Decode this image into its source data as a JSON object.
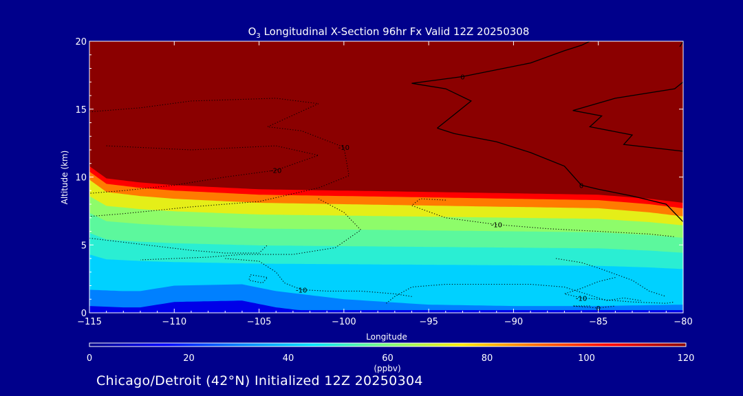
{
  "chart_data": {
    "type": "heatmap",
    "title_prefix": "O",
    "title_subscript": "3",
    "title_rest": " Longitudinal X-Section 96hr  Fx Valid 12Z 20250308",
    "xlabel": "Longitude",
    "ylabel": "Altitude (km)",
    "xlim": [
      -115,
      -80
    ],
    "ylim": [
      0,
      20
    ],
    "x_ticks": [
      -115,
      -110,
      -105,
      -100,
      -95,
      -90,
      -85,
      -80
    ],
    "x_tick_labels": [
      "−115",
      "−110",
      "−105",
      "−100",
      "−95",
      "−90",
      "−85",
      "−80"
    ],
    "y_ticks": [
      0,
      5,
      10,
      15,
      20
    ],
    "y_tick_labels": [
      "0",
      "5",
      "10",
      "15",
      "20"
    ],
    "field": {
      "variable": "O3",
      "units": "ppbv",
      "tropopause_height_km": [
        [
          -115,
          10.8
        ],
        [
          -114,
          9.9
        ],
        [
          -112,
          9.6
        ],
        [
          -110,
          9.4
        ],
        [
          -105,
          9.1
        ],
        [
          -100,
          9.0
        ],
        [
          -95,
          8.9
        ],
        [
          -90,
          8.8
        ],
        [
          -85,
          8.7
        ],
        [
          -82,
          8.4
        ],
        [
          -80,
          8.1
        ]
      ],
      "boundary_layer_top_km": [
        [
          -115,
          1.7
        ],
        [
          -113,
          1.6
        ],
        [
          -112,
          1.6
        ],
        [
          -110,
          2.0
        ],
        [
          -106,
          2.1
        ],
        [
          -104,
          1.6
        ],
        [
          -100,
          1.0
        ],
        [
          -95,
          0.6
        ],
        [
          -90,
          0.5
        ],
        [
          -85,
          0.5
        ],
        [
          -80,
          0.6
        ]
      ],
      "layers": [
        {
          "top_km": 1.0,
          "value": 12
        },
        {
          "top_km": 2.2,
          "value": 30
        },
        {
          "top_km": 3.5,
          "value": 42
        },
        {
          "top_km": 4.8,
          "value": 50
        },
        {
          "top_km": 6.0,
          "value": 56
        },
        {
          "top_km": 7.0,
          "value": 62
        },
        {
          "top_km": 7.8,
          "value": 72
        },
        {
          "top_km": 8.4,
          "value": 88
        },
        {
          "top_km": 8.8,
          "value": 105
        },
        {
          "top_km": 20,
          "value": 120
        }
      ]
    },
    "contours": [
      {
        "label": "0",
        "style": "solid",
        "points": [
          [
            -94.5,
            13.6
          ],
          [
            -93.5,
            13.2
          ],
          [
            -91,
            12.6
          ],
          [
            -89,
            11.8
          ],
          [
            -87,
            10.8
          ],
          [
            -86,
            9.4
          ],
          [
            -85,
            9.1
          ],
          [
            -83,
            8.6
          ],
          [
            -81,
            8.0
          ],
          [
            -80,
            6.7
          ]
        ]
      },
      {
        "label": "0",
        "style": "solid",
        "points": [
          [
            -94.5,
            13.6
          ],
          [
            -93.5,
            14.6
          ],
          [
            -92.5,
            15.6
          ],
          [
            -94,
            16.5
          ],
          [
            -96,
            16.9
          ],
          [
            -93,
            17.4
          ],
          [
            -89,
            18.4
          ],
          [
            -87,
            19.3
          ],
          [
            -86,
            19.7
          ],
          [
            -85.5,
            20
          ]
        ]
      },
      {
        "label": "",
        "style": "solid",
        "points": [
          [
            -80,
            11.9
          ],
          [
            -83.5,
            12.4
          ],
          [
            -83,
            13.1
          ],
          [
            -85.5,
            13.7
          ],
          [
            -84.8,
            14.5
          ],
          [
            -86.5,
            14.9
          ],
          [
            -84,
            15.8
          ],
          [
            -80.5,
            16.5
          ],
          [
            -80,
            17
          ]
        ]
      },
      {
        "label": "",
        "style": "solid",
        "points": [
          [
            -80,
            20
          ],
          [
            -80.2,
            19.6
          ]
        ]
      },
      {
        "label": "-10",
        "style": "dotted",
        "points": [
          [
            -115,
            14.8
          ],
          [
            -112,
            15.1
          ],
          [
            -109,
            15.6
          ],
          [
            -104,
            15.8
          ],
          [
            -101.5,
            15.4
          ],
          [
            -104.5,
            13.7
          ],
          [
            -102.5,
            13.4
          ],
          [
            -100,
            12.2
          ],
          [
            -99.7,
            10.1
          ],
          [
            -101.5,
            9.2
          ],
          [
            -105,
            8.2
          ],
          [
            -109,
            7.8
          ],
          [
            -113,
            7.3
          ],
          [
            -115,
            7.1
          ]
        ]
      },
      {
        "label": "-20",
        "style": "dotted",
        "points": [
          [
            -114,
            12.3
          ],
          [
            -109,
            12.0
          ],
          [
            -104,
            12.3
          ],
          [
            -101.5,
            11.6
          ],
          [
            -104,
            10.5
          ],
          [
            -107,
            10.0
          ],
          [
            -110,
            9.4
          ],
          [
            -113,
            9.0
          ],
          [
            -115,
            8.8
          ]
        ]
      },
      {
        "label": "-10",
        "style": "dotted",
        "points": [
          [
            -94,
            8.3
          ],
          [
            -95.5,
            8.4
          ],
          [
            -96,
            7.9
          ],
          [
            -94,
            7.0
          ],
          [
            -91,
            6.5
          ],
          [
            -88,
            6.2
          ],
          [
            -85,
            6.0
          ],
          [
            -82,
            5.8
          ],
          [
            -80.5,
            5.6
          ]
        ]
      },
      {
        "label": "",
        "style": "dotted",
        "points": [
          [
            -101.5,
            8.4
          ],
          [
            -100,
            7.4
          ],
          [
            -99,
            6.1
          ],
          [
            -100.5,
            4.8
          ],
          [
            -103,
            4.3
          ],
          [
            -106,
            4.3
          ],
          [
            -108,
            4.1
          ],
          [
            -110,
            4.0
          ],
          [
            -112,
            3.9
          ]
        ]
      },
      {
        "label": "",
        "style": "dotted",
        "points": [
          [
            -115,
            5.5
          ],
          [
            -113,
            5.2
          ],
          [
            -111,
            4.9
          ],
          [
            -109,
            4.6
          ],
          [
            -107,
            4.4
          ],
          [
            -105,
            4.4
          ],
          [
            -104.5,
            5.0
          ]
        ]
      },
      {
        "label": "-10",
        "style": "dotted",
        "points": [
          [
            -107,
            4.0
          ],
          [
            -105,
            3.8
          ],
          [
            -104,
            3.0
          ],
          [
            -103.5,
            2.2
          ],
          [
            -102.5,
            1.7
          ],
          [
            -101,
            1.6
          ],
          [
            -99,
            1.6
          ],
          [
            -97,
            1.4
          ],
          [
            -96,
            1.2
          ]
        ]
      },
      {
        "label": "",
        "style": "dotted",
        "points": [
          [
            -105.5,
            2.8
          ],
          [
            -104.5,
            2.6
          ],
          [
            -104.8,
            2.2
          ],
          [
            -105.6,
            2.4
          ],
          [
            -105.5,
            2.8
          ]
        ]
      },
      {
        "label": "",
        "style": "dotted",
        "points": [
          [
            -97.5,
            0.7
          ],
          [
            -97,
            1.2
          ],
          [
            -96,
            1.9
          ],
          [
            -94,
            2.1
          ],
          [
            -91,
            2.1
          ],
          [
            -89,
            2.1
          ],
          [
            -87,
            1.9
          ],
          [
            -85.5,
            1.3
          ],
          [
            -84.5,
            0.9
          ],
          [
            -83.5,
            1.1
          ],
          [
            -82.5,
            0.9
          ]
        ]
      },
      {
        "label": "-10",
        "style": "dotted",
        "points": [
          [
            -84,
            2.6
          ],
          [
            -85,
            2.3
          ],
          [
            -86,
            1.8
          ],
          [
            -87,
            1.4
          ],
          [
            -86,
            1.1
          ],
          [
            -83,
            0.8
          ],
          [
            -81,
            0.7
          ],
          [
            -80.5,
            0.8
          ]
        ]
      },
      {
        "label": "0",
        "style": "dotted",
        "points": [
          [
            -85.5,
            0.5
          ],
          [
            -86.5,
            0.5
          ],
          [
            -85,
            0.35
          ],
          [
            -84,
            0.5
          ]
        ]
      },
      {
        "label": "",
        "style": "dotted",
        "points": [
          [
            -87.5,
            4.0
          ],
          [
            -86,
            3.7
          ],
          [
            -85,
            3.3
          ],
          [
            -83,
            2.4
          ],
          [
            -82,
            1.6
          ],
          [
            -81,
            1.2
          ]
        ]
      }
    ],
    "colorbar": {
      "min": 0,
      "max": 120,
      "ticks": [
        0,
        20,
        40,
        60,
        80,
        100,
        120
      ],
      "tick_labels": [
        "0",
        "20",
        "40",
        "60",
        "80",
        "100",
        "120"
      ],
      "label": "(ppbv)",
      "colors": [
        "#00008b",
        "#0000ff",
        "#0080ff",
        "#00e5ff",
        "#7dff7a",
        "#ffea00",
        "#ff6a00",
        "#ff0000",
        "#8b0000"
      ]
    }
  },
  "caption": "Chicago/Detroit (42°N) Initialized 12Z 20250304"
}
